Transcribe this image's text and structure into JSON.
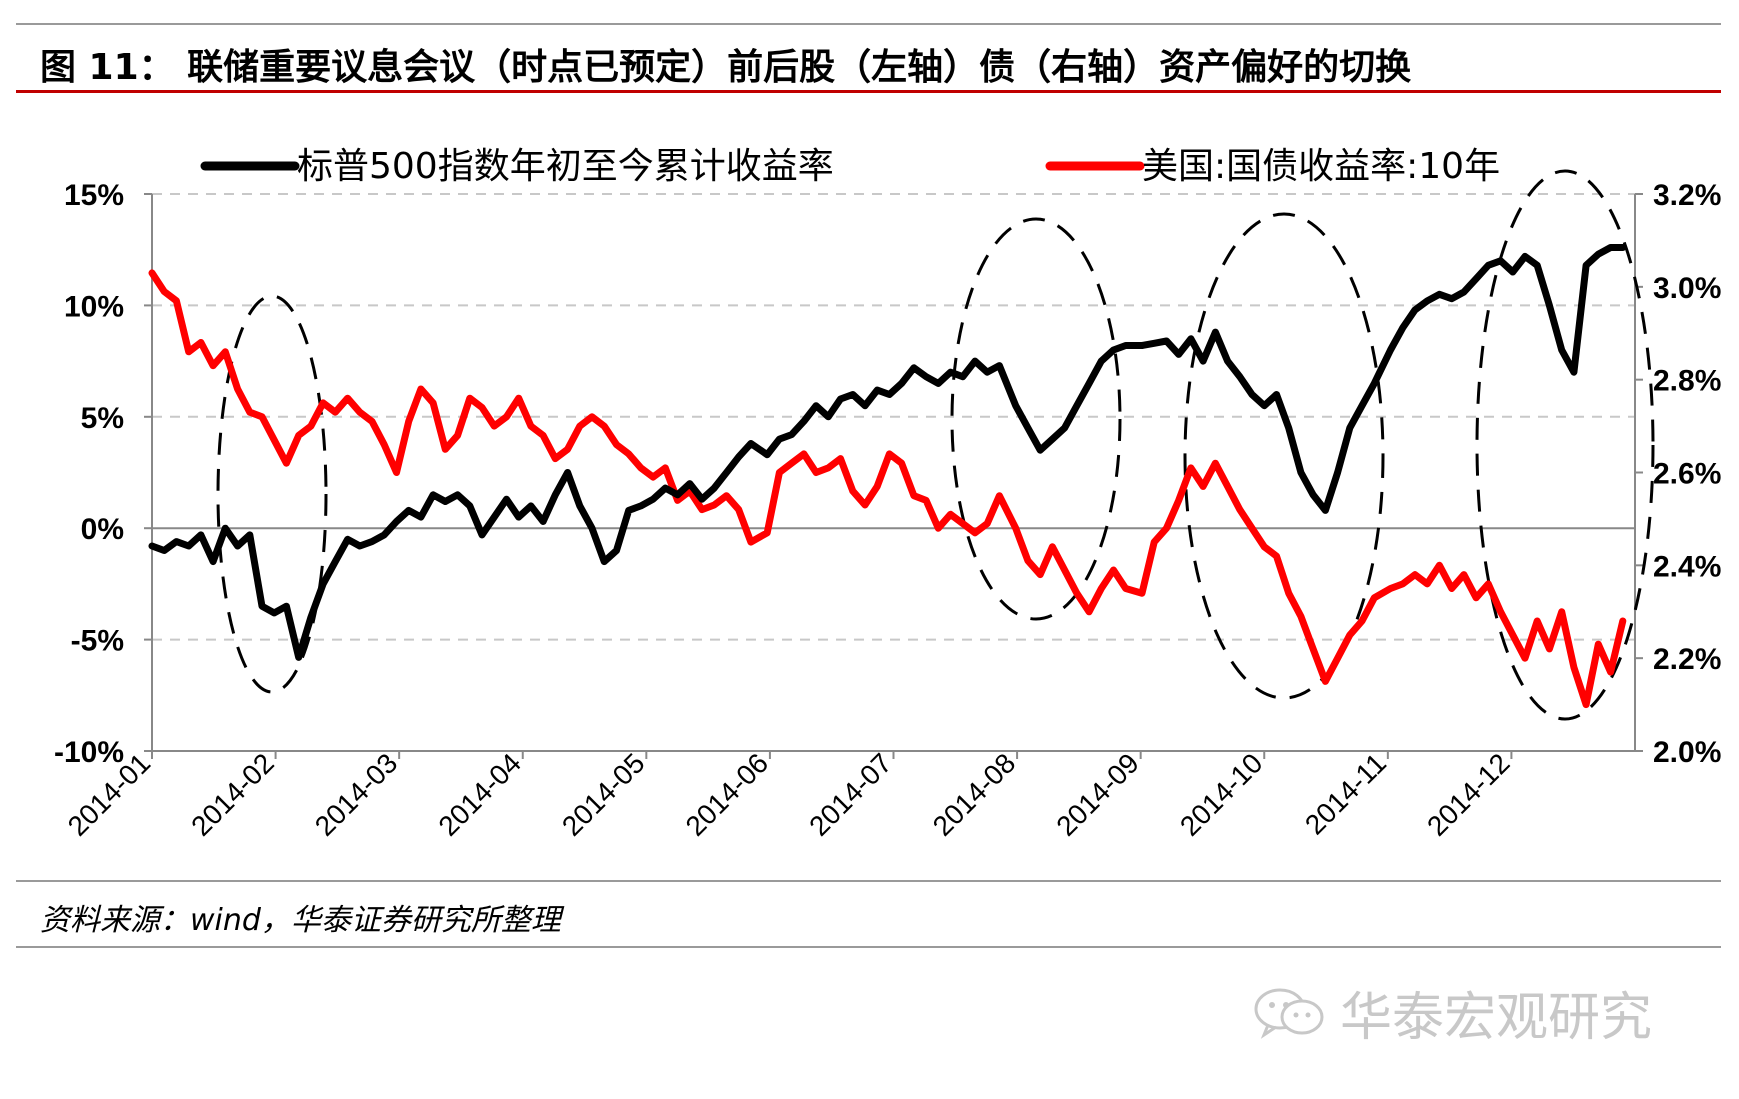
{
  "title": "图 11：   联储重要议息会议（时点已预定）前后股（左轴）债（右轴）资产偏好的切换",
  "source": "资料来源：wind，华泰证券研究所整理",
  "watermark": {
    "text": "华泰宏观研究",
    "icon": "wechat-icon"
  },
  "colors": {
    "stock": "#000000",
    "bond": "#ff0000",
    "title_rule": "#c00000",
    "grid": "#c8c8c8"
  },
  "chart_data": {
    "type": "line",
    "x_labels": [
      "2014-01",
      "2014-02",
      "2014-03",
      "2014-04",
      "2014-05",
      "2014-06",
      "2014-07",
      "2014-08",
      "2014-09",
      "2014-10",
      "2014-11",
      "2014-12"
    ],
    "y_left": {
      "min": -10,
      "max": 15,
      "ticks": [
        15,
        10,
        5,
        0,
        -5,
        -10
      ],
      "tick_labels": [
        "15%",
        "10%",
        "5%",
        "0%",
        "-5%",
        "-10%"
      ]
    },
    "y_right": {
      "min": 2.0,
      "max": 3.2,
      "ticks": [
        3.2,
        3.0,
        2.8,
        2.6,
        2.4,
        2.2,
        2.0
      ],
      "tick_labels": [
        "3.2%",
        "3.0%",
        "2.8%",
        "2.6%",
        "2.4%",
        "2.2%",
        "2.0%"
      ]
    },
    "grid": "horizontal-dashed",
    "legend_position": "top",
    "series": [
      {
        "name": "标普500指数年初至今累计收益率",
        "axis": "left",
        "color": "#000000",
        "points": [
          [
            "2014-01-01",
            -0.8
          ],
          [
            "2014-01-04",
            -1.0
          ],
          [
            "2014-01-07",
            -0.6
          ],
          [
            "2014-01-10",
            -0.8
          ],
          [
            "2014-01-13",
            -0.3
          ],
          [
            "2014-01-16",
            -1.5
          ],
          [
            "2014-01-19",
            0.0
          ],
          [
            "2014-01-22",
            -0.8
          ],
          [
            "2014-01-25",
            -0.3
          ],
          [
            "2014-01-28",
            -3.5
          ],
          [
            "2014-01-31",
            -3.8
          ],
          [
            "2014-02-03",
            -3.5
          ],
          [
            "2014-02-06",
            -5.8
          ],
          [
            "2014-02-09",
            -4.0
          ],
          [
            "2014-02-12",
            -2.5
          ],
          [
            "2014-02-15",
            -1.5
          ],
          [
            "2014-02-18",
            -0.5
          ],
          [
            "2014-02-21",
            -0.8
          ],
          [
            "2014-02-24",
            -0.6
          ],
          [
            "2014-02-27",
            -0.3
          ],
          [
            "2014-03-02",
            0.3
          ],
          [
            "2014-03-05",
            0.8
          ],
          [
            "2014-03-08",
            0.5
          ],
          [
            "2014-03-11",
            1.5
          ],
          [
            "2014-03-14",
            1.2
          ],
          [
            "2014-03-17",
            1.5
          ],
          [
            "2014-03-20",
            1.0
          ],
          [
            "2014-03-23",
            -0.3
          ],
          [
            "2014-03-26",
            0.5
          ],
          [
            "2014-03-29",
            1.3
          ],
          [
            "2014-04-01",
            0.5
          ],
          [
            "2014-04-04",
            1.0
          ],
          [
            "2014-04-07",
            0.3
          ],
          [
            "2014-04-10",
            1.5
          ],
          [
            "2014-04-13",
            2.5
          ],
          [
            "2014-04-16",
            1.0
          ],
          [
            "2014-04-19",
            0.0
          ],
          [
            "2014-04-22",
            -1.5
          ],
          [
            "2014-04-25",
            -1.0
          ],
          [
            "2014-04-28",
            0.8
          ],
          [
            "2014-05-01",
            1.0
          ],
          [
            "2014-05-04",
            1.3
          ],
          [
            "2014-05-07",
            1.8
          ],
          [
            "2014-05-10",
            1.5
          ],
          [
            "2014-05-13",
            2.0
          ],
          [
            "2014-05-16",
            1.3
          ],
          [
            "2014-05-19",
            1.8
          ],
          [
            "2014-05-22",
            2.5
          ],
          [
            "2014-05-25",
            3.2
          ],
          [
            "2014-05-28",
            3.8
          ],
          [
            "2014-06-01",
            3.3
          ],
          [
            "2014-06-04",
            4.0
          ],
          [
            "2014-06-07",
            4.2
          ],
          [
            "2014-06-10",
            4.8
          ],
          [
            "2014-06-13",
            5.5
          ],
          [
            "2014-06-16",
            5.0
          ],
          [
            "2014-06-19",
            5.8
          ],
          [
            "2014-06-22",
            6.0
          ],
          [
            "2014-06-25",
            5.5
          ],
          [
            "2014-06-28",
            6.2
          ],
          [
            "2014-07-01",
            6.0
          ],
          [
            "2014-07-04",
            6.5
          ],
          [
            "2014-07-07",
            7.2
          ],
          [
            "2014-07-10",
            6.8
          ],
          [
            "2014-07-13",
            6.5
          ],
          [
            "2014-07-16",
            7.0
          ],
          [
            "2014-07-19",
            6.8
          ],
          [
            "2014-07-22",
            7.5
          ],
          [
            "2014-07-25",
            7.0
          ],
          [
            "2014-07-28",
            7.3
          ],
          [
            "2014-08-01",
            5.5
          ],
          [
            "2014-08-04",
            4.5
          ],
          [
            "2014-08-07",
            3.5
          ],
          [
            "2014-08-10",
            4.0
          ],
          [
            "2014-08-13",
            4.5
          ],
          [
            "2014-08-16",
            5.5
          ],
          [
            "2014-08-19",
            6.5
          ],
          [
            "2014-08-22",
            7.5
          ],
          [
            "2014-08-25",
            8.0
          ],
          [
            "2014-08-28",
            8.2
          ],
          [
            "2014-09-01",
            8.2
          ],
          [
            "2014-09-04",
            8.3
          ],
          [
            "2014-09-07",
            8.4
          ],
          [
            "2014-09-10",
            7.8
          ],
          [
            "2014-09-13",
            8.5
          ],
          [
            "2014-09-16",
            7.5
          ],
          [
            "2014-09-19",
            8.8
          ],
          [
            "2014-09-22",
            7.5
          ],
          [
            "2014-09-25",
            6.8
          ],
          [
            "2014-09-28",
            6.0
          ],
          [
            "2014-10-01",
            5.5
          ],
          [
            "2014-10-04",
            6.0
          ],
          [
            "2014-10-07",
            4.5
          ],
          [
            "2014-10-10",
            2.5
          ],
          [
            "2014-10-13",
            1.5
          ],
          [
            "2014-10-16",
            0.8
          ],
          [
            "2014-10-19",
            2.5
          ],
          [
            "2014-10-22",
            4.5
          ],
          [
            "2014-10-25",
            5.5
          ],
          [
            "2014-10-28",
            6.5
          ],
          [
            "2014-11-01",
            8.0
          ],
          [
            "2014-11-04",
            9.0
          ],
          [
            "2014-11-07",
            9.8
          ],
          [
            "2014-11-10",
            10.2
          ],
          [
            "2014-11-13",
            10.5
          ],
          [
            "2014-11-16",
            10.3
          ],
          [
            "2014-11-19",
            10.6
          ],
          [
            "2014-11-22",
            11.2
          ],
          [
            "2014-11-25",
            11.8
          ],
          [
            "2014-11-28",
            12.0
          ],
          [
            "2014-12-01",
            11.5
          ],
          [
            "2014-12-04",
            12.2
          ],
          [
            "2014-12-07",
            11.8
          ],
          [
            "2014-12-10",
            10.0
          ],
          [
            "2014-12-13",
            8.0
          ],
          [
            "2014-12-16",
            7.0
          ],
          [
            "2014-12-19",
            11.8
          ],
          [
            "2014-12-22",
            12.3
          ],
          [
            "2014-12-25",
            12.6
          ],
          [
            "2014-12-28",
            12.6
          ]
        ]
      },
      {
        "name": "美国:国债收益率:10年",
        "axis": "right",
        "color": "#ff0000",
        "points": [
          [
            "2014-01-01",
            3.03
          ],
          [
            "2014-01-04",
            2.99
          ],
          [
            "2014-01-07",
            2.97
          ],
          [
            "2014-01-10",
            2.86
          ],
          [
            "2014-01-13",
            2.88
          ],
          [
            "2014-01-16",
            2.83
          ],
          [
            "2014-01-19",
            2.86
          ],
          [
            "2014-01-22",
            2.78
          ],
          [
            "2014-01-25",
            2.73
          ],
          [
            "2014-01-28",
            2.72
          ],
          [
            "2014-01-31",
            2.67
          ],
          [
            "2014-02-03",
            2.62
          ],
          [
            "2014-02-06",
            2.68
          ],
          [
            "2014-02-09",
            2.7
          ],
          [
            "2014-02-12",
            2.75
          ],
          [
            "2014-02-15",
            2.73
          ],
          [
            "2014-02-18",
            2.76
          ],
          [
            "2014-02-21",
            2.73
          ],
          [
            "2014-02-24",
            2.71
          ],
          [
            "2014-02-27",
            2.66
          ],
          [
            "2014-03-02",
            2.6
          ],
          [
            "2014-03-05",
            2.71
          ],
          [
            "2014-03-08",
            2.78
          ],
          [
            "2014-03-11",
            2.75
          ],
          [
            "2014-03-14",
            2.65
          ],
          [
            "2014-03-17",
            2.68
          ],
          [
            "2014-03-20",
            2.76
          ],
          [
            "2014-03-23",
            2.74
          ],
          [
            "2014-03-26",
            2.7
          ],
          [
            "2014-03-29",
            2.72
          ],
          [
            "2014-04-01",
            2.76
          ],
          [
            "2014-04-04",
            2.7
          ],
          [
            "2014-04-07",
            2.68
          ],
          [
            "2014-04-10",
            2.63
          ],
          [
            "2014-04-13",
            2.65
          ],
          [
            "2014-04-16",
            2.7
          ],
          [
            "2014-04-19",
            2.72
          ],
          [
            "2014-04-22",
            2.7
          ],
          [
            "2014-04-25",
            2.66
          ],
          [
            "2014-04-28",
            2.64
          ],
          [
            "2014-05-01",
            2.61
          ],
          [
            "2014-05-04",
            2.59
          ],
          [
            "2014-05-07",
            2.61
          ],
          [
            "2014-05-10",
            2.54
          ],
          [
            "2014-05-13",
            2.56
          ],
          [
            "2014-05-16",
            2.52
          ],
          [
            "2014-05-19",
            2.53
          ],
          [
            "2014-05-22",
            2.55
          ],
          [
            "2014-05-25",
            2.52
          ],
          [
            "2014-05-28",
            2.45
          ],
          [
            "2014-06-01",
            2.47
          ],
          [
            "2014-06-04",
            2.6
          ],
          [
            "2014-06-07",
            2.62
          ],
          [
            "2014-06-10",
            2.64
          ],
          [
            "2014-06-13",
            2.6
          ],
          [
            "2014-06-16",
            2.61
          ],
          [
            "2014-06-19",
            2.63
          ],
          [
            "2014-06-22",
            2.56
          ],
          [
            "2014-06-25",
            2.53
          ],
          [
            "2014-06-28",
            2.57
          ],
          [
            "2014-07-01",
            2.64
          ],
          [
            "2014-07-04",
            2.62
          ],
          [
            "2014-07-07",
            2.55
          ],
          [
            "2014-07-10",
            2.54
          ],
          [
            "2014-07-13",
            2.48
          ],
          [
            "2014-07-16",
            2.51
          ],
          [
            "2014-07-19",
            2.49
          ],
          [
            "2014-07-22",
            2.47
          ],
          [
            "2014-07-25",
            2.49
          ],
          [
            "2014-07-28",
            2.55
          ],
          [
            "2014-08-01",
            2.48
          ],
          [
            "2014-08-04",
            2.41
          ],
          [
            "2014-08-07",
            2.38
          ],
          [
            "2014-08-10",
            2.44
          ],
          [
            "2014-08-13",
            2.39
          ],
          [
            "2014-08-16",
            2.34
          ],
          [
            "2014-08-19",
            2.3
          ],
          [
            "2014-08-22",
            2.35
          ],
          [
            "2014-08-25",
            2.39
          ],
          [
            "2014-08-28",
            2.35
          ],
          [
            "2014-09-01",
            2.34
          ],
          [
            "2014-09-04",
            2.45
          ],
          [
            "2014-09-07",
            2.48
          ],
          [
            "2014-09-10",
            2.54
          ],
          [
            "2014-09-13",
            2.61
          ],
          [
            "2014-09-16",
            2.57
          ],
          [
            "2014-09-19",
            2.62
          ],
          [
            "2014-09-22",
            2.57
          ],
          [
            "2014-09-25",
            2.52
          ],
          [
            "2014-09-28",
            2.48
          ],
          [
            "2014-10-01",
            2.44
          ],
          [
            "2014-10-04",
            2.42
          ],
          [
            "2014-10-07",
            2.34
          ],
          [
            "2014-10-10",
            2.29
          ],
          [
            "2014-10-13",
            2.22
          ],
          [
            "2014-10-16",
            2.15
          ],
          [
            "2014-10-19",
            2.2
          ],
          [
            "2014-10-22",
            2.25
          ],
          [
            "2014-10-25",
            2.28
          ],
          [
            "2014-10-28",
            2.33
          ],
          [
            "2014-11-01",
            2.35
          ],
          [
            "2014-11-04",
            2.36
          ],
          [
            "2014-11-07",
            2.38
          ],
          [
            "2014-11-10",
            2.36
          ],
          [
            "2014-11-13",
            2.4
          ],
          [
            "2014-11-16",
            2.35
          ],
          [
            "2014-11-19",
            2.38
          ],
          [
            "2014-11-22",
            2.33
          ],
          [
            "2014-11-25",
            2.36
          ],
          [
            "2014-11-28",
            2.3
          ],
          [
            "2014-12-01",
            2.25
          ],
          [
            "2014-12-04",
            2.2
          ],
          [
            "2014-12-07",
            2.28
          ],
          [
            "2014-12-10",
            2.22
          ],
          [
            "2014-12-13",
            2.3
          ],
          [
            "2014-12-16",
            2.18
          ],
          [
            "2014-12-19",
            2.1
          ],
          [
            "2014-12-22",
            2.23
          ],
          [
            "2014-12-25",
            2.17
          ],
          [
            "2014-12-28",
            2.28
          ]
        ]
      }
    ],
    "annotations": [
      {
        "type": "dashed-ellipse",
        "period": "2014-02 pre/post FOMC"
      },
      {
        "type": "dashed-ellipse",
        "period": "2014-08 pre/post FOMC"
      },
      {
        "type": "dashed-ellipse",
        "period": "2014-10 pre/post FOMC"
      },
      {
        "type": "dashed-ellipse",
        "period": "2014-12 pre/post FOMC"
      }
    ]
  }
}
